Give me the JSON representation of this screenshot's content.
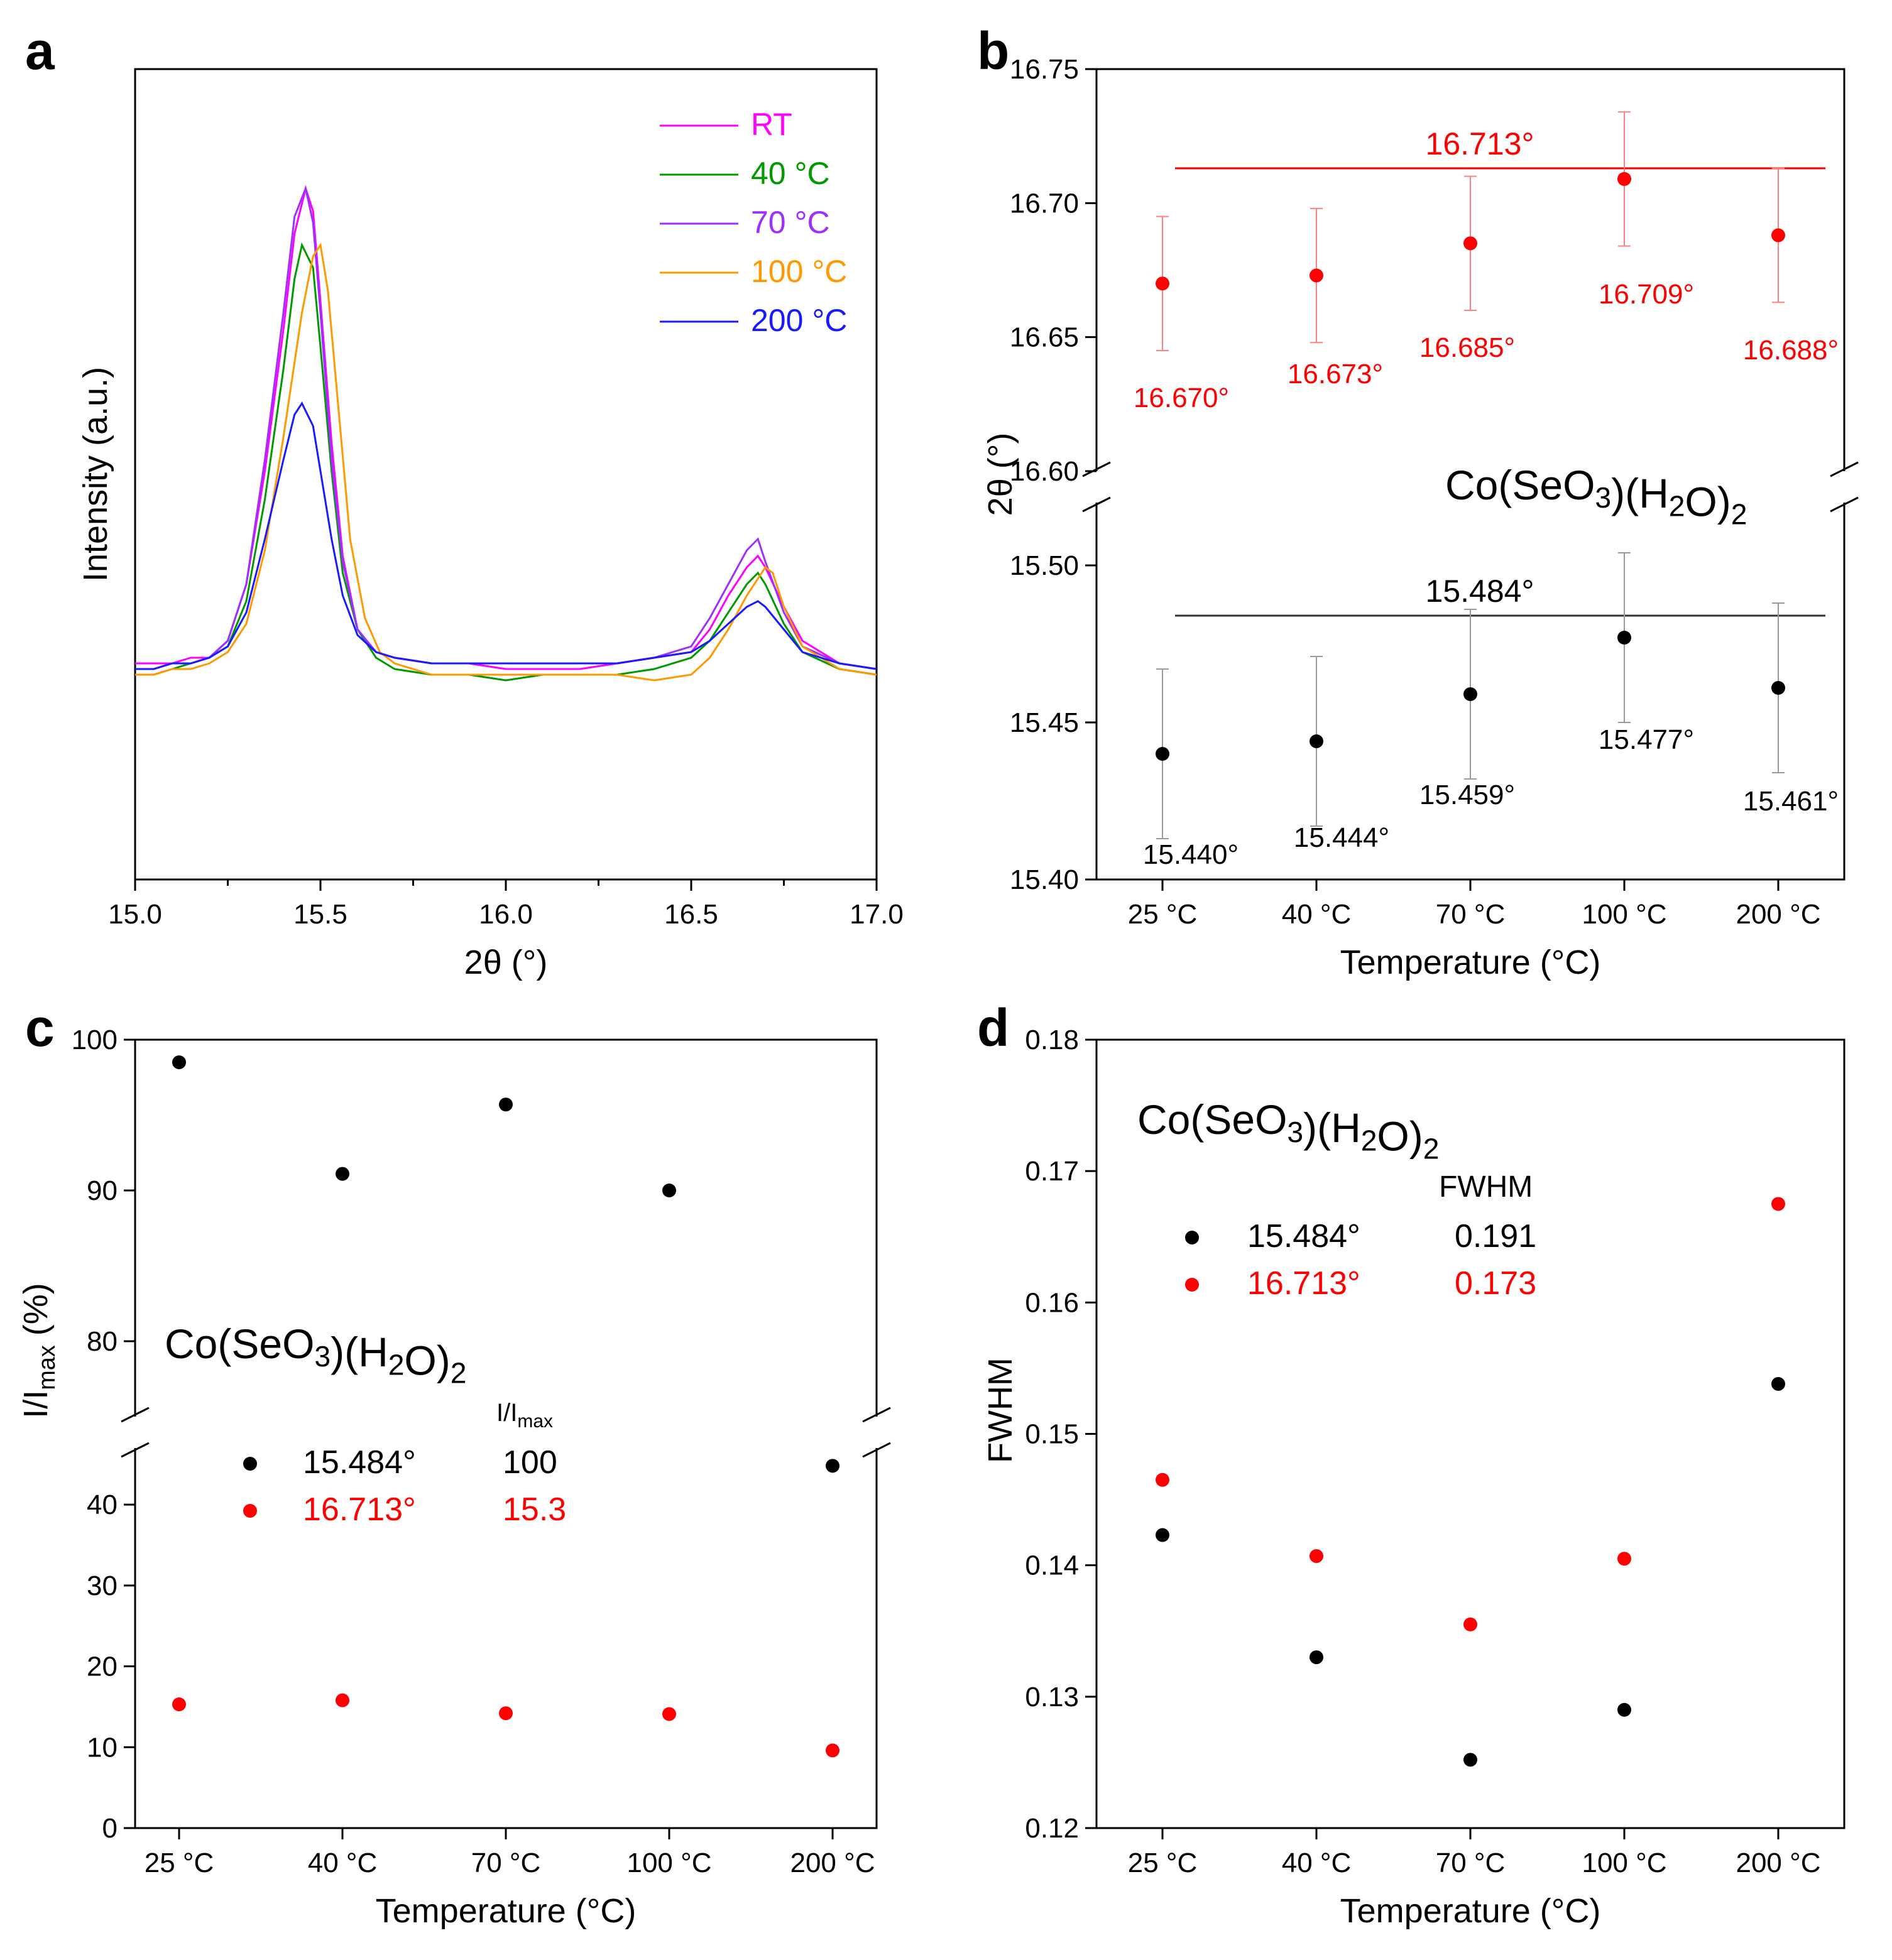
{
  "panels": {
    "a": {
      "letter": "a"
    },
    "b": {
      "letter": "b"
    },
    "c": {
      "letter": "c"
    },
    "d": {
      "letter": "d"
    }
  },
  "compound": {
    "prefix": "Co(SeO",
    "sub1": "3",
    "mid": ")(H",
    "sub2": "2",
    "mid2": "O)",
    "sub3": "2"
  },
  "chart_data": [
    {
      "id": "a",
      "type": "line",
      "title": "",
      "xlabel": "2θ (°)",
      "ylabel": "Intensity (a.u.)",
      "xlim": [
        15.0,
        17.0
      ],
      "xticks": [
        "15.0",
        "15.5",
        "16.0",
        "16.5",
        "17.0"
      ],
      "yticks": [],
      "series": [
        {
          "name": "RT",
          "color": "#ff00ff",
          "x": [
            15.0,
            15.05,
            15.1,
            15.15,
            15.2,
            15.25,
            15.3,
            15.35,
            15.4,
            15.43,
            15.46,
            15.48,
            15.5,
            15.53,
            15.56,
            15.6,
            15.65,
            15.7,
            15.8,
            15.9,
            16.0,
            16.1,
            16.2,
            16.3,
            16.4,
            16.5,
            16.55,
            16.6,
            16.65,
            16.68,
            16.7,
            16.75,
            16.8,
            16.9,
            17.0
          ],
          "y": [
            0.16,
            0.16,
            0.16,
            0.17,
            0.17,
            0.2,
            0.3,
            0.5,
            0.75,
            0.92,
            1.0,
            0.96,
            0.8,
            0.55,
            0.35,
            0.22,
            0.18,
            0.17,
            0.16,
            0.16,
            0.15,
            0.15,
            0.15,
            0.16,
            0.17,
            0.18,
            0.22,
            0.28,
            0.33,
            0.35,
            0.33,
            0.26,
            0.2,
            0.16,
            0.15
          ]
        },
        {
          "name": "40 °C",
          "color": "#009900",
          "x": [
            15.0,
            15.05,
            15.1,
            15.15,
            15.2,
            15.25,
            15.3,
            15.35,
            15.4,
            15.43,
            15.45,
            15.48,
            15.5,
            15.53,
            15.56,
            15.6,
            15.65,
            15.7,
            15.8,
            15.9,
            16.0,
            16.1,
            16.2,
            16.3,
            16.4,
            16.5,
            16.55,
            16.6,
            16.65,
            16.68,
            16.7,
            16.75,
            16.8,
            16.9,
            17.0
          ],
          "y": [
            0.14,
            0.14,
            0.15,
            0.16,
            0.17,
            0.19,
            0.27,
            0.45,
            0.68,
            0.84,
            0.9,
            0.86,
            0.72,
            0.5,
            0.32,
            0.22,
            0.17,
            0.15,
            0.14,
            0.14,
            0.13,
            0.14,
            0.14,
            0.14,
            0.15,
            0.17,
            0.2,
            0.25,
            0.3,
            0.32,
            0.3,
            0.23,
            0.18,
            0.15,
            0.14
          ]
        },
        {
          "name": "70 °C",
          "color": "#9b30ff",
          "x": [
            15.0,
            15.05,
            15.1,
            15.15,
            15.2,
            15.25,
            15.3,
            15.35,
            15.4,
            15.43,
            15.46,
            15.48,
            15.5,
            15.53,
            15.56,
            15.6,
            15.65,
            15.7,
            15.8,
            15.9,
            16.0,
            16.1,
            16.2,
            16.3,
            16.4,
            16.5,
            16.55,
            16.6,
            16.65,
            16.68,
            16.7,
            16.75,
            16.8,
            16.9,
            17.0
          ],
          "y": [
            0.15,
            0.15,
            0.16,
            0.16,
            0.17,
            0.2,
            0.3,
            0.52,
            0.78,
            0.95,
            1.0,
            0.94,
            0.78,
            0.52,
            0.34,
            0.22,
            0.18,
            0.17,
            0.16,
            0.16,
            0.16,
            0.16,
            0.16,
            0.16,
            0.17,
            0.19,
            0.24,
            0.3,
            0.36,
            0.38,
            0.34,
            0.25,
            0.19,
            0.16,
            0.15
          ]
        },
        {
          "name": "100 °C",
          "color": "#ff9900",
          "x": [
            15.0,
            15.05,
            15.1,
            15.15,
            15.2,
            15.25,
            15.3,
            15.35,
            15.4,
            15.45,
            15.48,
            15.5,
            15.52,
            15.55,
            15.58,
            15.62,
            15.66,
            15.7,
            15.8,
            15.9,
            16.0,
            16.1,
            16.2,
            16.3,
            16.4,
            16.5,
            16.55,
            16.6,
            16.65,
            16.7,
            16.72,
            16.75,
            16.8,
            16.9,
            17.0
          ],
          "y": [
            0.14,
            0.14,
            0.15,
            0.15,
            0.16,
            0.18,
            0.23,
            0.36,
            0.56,
            0.78,
            0.88,
            0.9,
            0.82,
            0.6,
            0.38,
            0.24,
            0.18,
            0.16,
            0.14,
            0.14,
            0.14,
            0.14,
            0.14,
            0.14,
            0.13,
            0.14,
            0.17,
            0.22,
            0.28,
            0.33,
            0.32,
            0.26,
            0.19,
            0.15,
            0.14
          ]
        },
        {
          "name": "200 °C",
          "color": "#1a1aff",
          "x": [
            15.0,
            15.05,
            15.1,
            15.15,
            15.2,
            15.25,
            15.3,
            15.35,
            15.4,
            15.43,
            15.45,
            15.48,
            15.5,
            15.53,
            15.56,
            15.6,
            15.65,
            15.7,
            15.8,
            15.9,
            16.0,
            16.1,
            16.2,
            16.3,
            16.4,
            16.5,
            16.55,
            16.6,
            16.65,
            16.68,
            16.7,
            16.75,
            16.8,
            16.9,
            17.0
          ],
          "y": [
            0.15,
            0.15,
            0.16,
            0.16,
            0.17,
            0.19,
            0.25,
            0.38,
            0.52,
            0.6,
            0.62,
            0.58,
            0.5,
            0.38,
            0.28,
            0.21,
            0.18,
            0.17,
            0.16,
            0.16,
            0.16,
            0.16,
            0.16,
            0.16,
            0.17,
            0.18,
            0.2,
            0.23,
            0.26,
            0.27,
            0.26,
            0.22,
            0.18,
            0.16,
            0.15
          ]
        }
      ]
    },
    {
      "id": "b",
      "type": "scatter",
      "xlabel": "Temperature (°C)",
      "ylabel": "2θ (°)",
      "categories": [
        "25 °C",
        "40 °C",
        "70 °C",
        "100 °C",
        "200 °C"
      ],
      "y_break": true,
      "upper": {
        "ylim": [
          16.6,
          16.75
        ],
        "yticks": [
          "16.60",
          "16.65",
          "16.70",
          "16.75"
        ],
        "color": "#ff0000",
        "values": [
          16.67,
          16.673,
          16.685,
          16.709,
          16.688
        ],
        "errors": [
          0.025,
          0.025,
          0.025,
          0.025,
          0.025
        ],
        "labels": [
          "16.670°",
          "16.673°",
          "16.685°",
          "16.709°",
          "16.688°"
        ],
        "mean": 16.713,
        "mean_label": "16.713°"
      },
      "lower": {
        "ylim": [
          15.4,
          15.52
        ],
        "yticks": [
          "15.40",
          "15.45",
          "15.50"
        ],
        "color": "#000000",
        "values": [
          15.44,
          15.444,
          15.459,
          15.477,
          15.461
        ],
        "errors": [
          0.027,
          0.027,
          0.027,
          0.027,
          0.027
        ],
        "labels": [
          "15.440°",
          "15.444°",
          "15.459°",
          "15.477°",
          "15.461°"
        ],
        "mean": 15.484,
        "mean_label": "15.484°"
      }
    },
    {
      "id": "c",
      "type": "scatter",
      "xlabel": "Temperature (°C)",
      "ylabel_main": "I/I",
      "ylabel_sub": "max",
      "ylabel_tail": " (%)",
      "categories": [
        "25 °C",
        "40 °C",
        "70 °C",
        "100 °C",
        "200 °C"
      ],
      "y_break": true,
      "upper": {
        "ylim": [
          75,
          100
        ],
        "yticks": [
          "80",
          "90",
          "100"
        ]
      },
      "lower": {
        "ylim": [
          0,
          47
        ],
        "yticks": [
          "0",
          "10",
          "20",
          "30",
          "40"
        ]
      },
      "series": [
        {
          "name": "15.484°",
          "color": "#000000",
          "values": [
            98.5,
            91.1,
            95.7,
            90.0,
            44.8
          ]
        },
        {
          "name": "16.713°",
          "color": "#ff0000",
          "values": [
            15.3,
            15.8,
            14.2,
            14.1,
            9.6
          ]
        }
      ],
      "legend": {
        "header_main": "I/I",
        "header_sub": "max",
        "rows": [
          {
            "label": "15.484°",
            "value": "100",
            "color": "#000000"
          },
          {
            "label": "16.713°",
            "value": "15.3",
            "color": "#ff0000"
          }
        ]
      }
    },
    {
      "id": "d",
      "type": "scatter",
      "xlabel": "Temperature (°C)",
      "ylabel": "FWHM",
      "categories": [
        "25 °C",
        "40 °C",
        "70 °C",
        "100 °C",
        "200 °C"
      ],
      "ylim": [
        0.12,
        0.18
      ],
      "yticks": [
        "0.12",
        "0.13",
        "0.14",
        "0.15",
        "0.16",
        "0.17",
        "0.18"
      ],
      "series": [
        {
          "name": "15.484°",
          "color": "#000000",
          "values": [
            0.1423,
            0.133,
            0.1252,
            0.129,
            0.1538
          ]
        },
        {
          "name": "16.713°",
          "color": "#ff0000",
          "values": [
            0.1465,
            0.1407,
            0.1355,
            0.1405,
            0.1675
          ]
        }
      ],
      "legend": {
        "header": "FWHM",
        "rows": [
          {
            "label": "15.484°",
            "value": "0.191",
            "color": "#000000"
          },
          {
            "label": "16.713°",
            "value": "0.173",
            "color": "#ff0000"
          }
        ]
      }
    }
  ]
}
